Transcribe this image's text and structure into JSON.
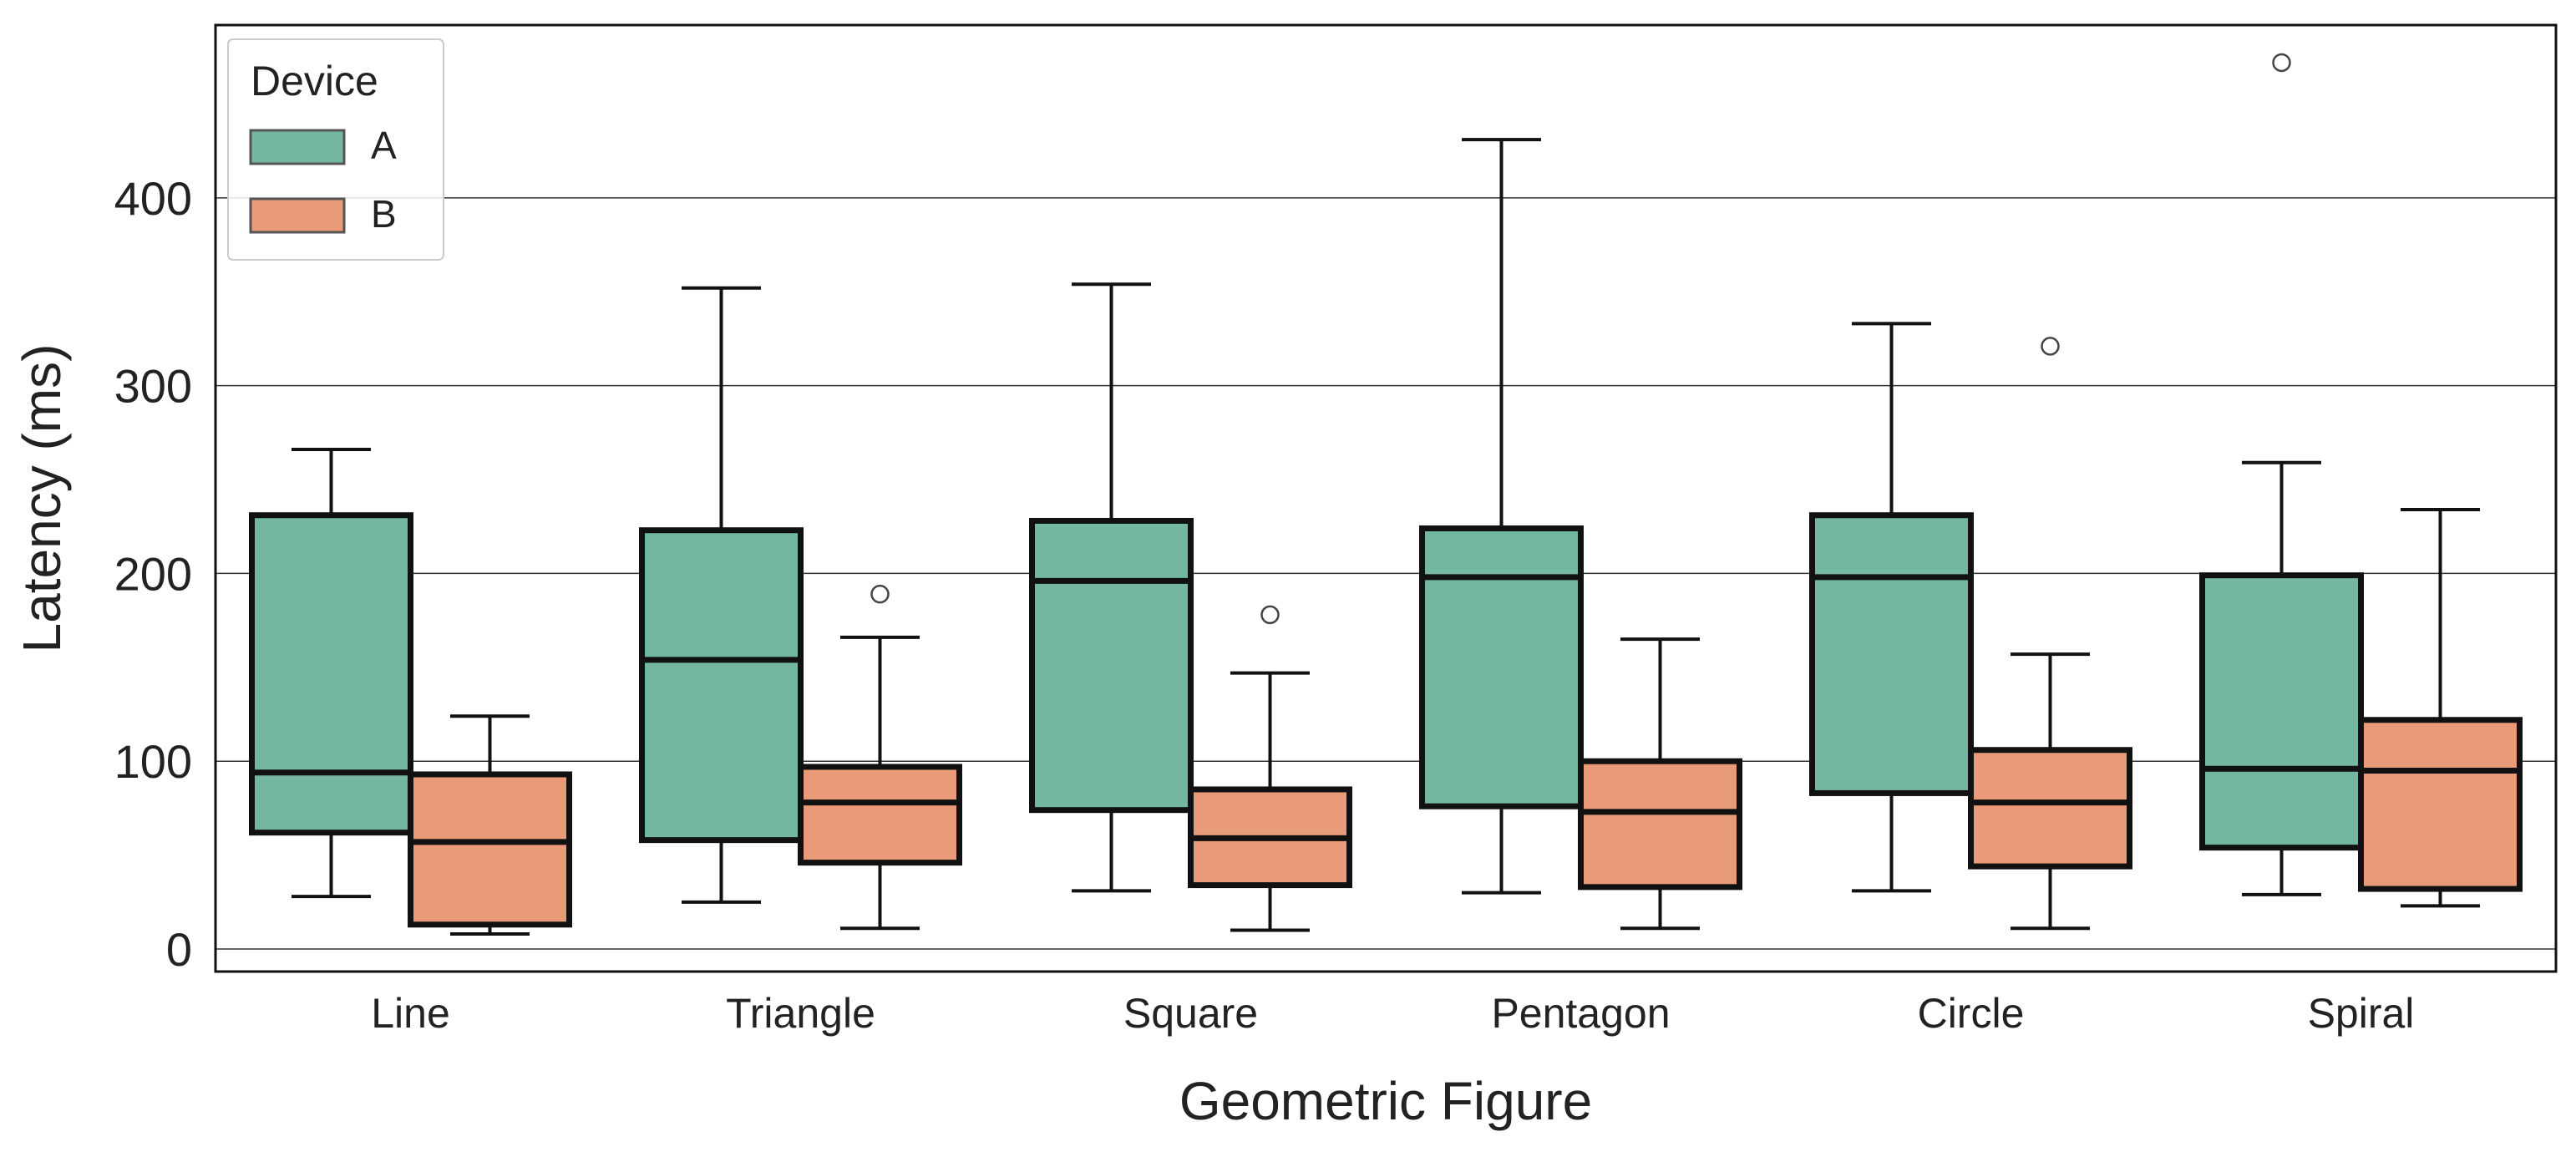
{
  "chart_data": {
    "type": "boxplot",
    "title": "",
    "xlabel": "Geometric Figure",
    "ylabel": "Latency (ms)",
    "ylim": [
      -12,
      492
    ],
    "yticks": [
      0,
      100,
      200,
      300,
      400
    ],
    "grid": "horizontal",
    "legend": {
      "title": "Device",
      "position": "top-left"
    },
    "categories": [
      "Line",
      "Triangle",
      "Square",
      "Pentagon",
      "Circle",
      "Spiral"
    ],
    "series": [
      {
        "name": "A",
        "color": "#73b6a1",
        "boxes": [
          {
            "whislo": 28,
            "q1": 62,
            "med": 94,
            "q3": 231,
            "whishi": 266,
            "fliers": []
          },
          {
            "whislo": 25,
            "q1": 58,
            "med": 154,
            "q3": 223,
            "whishi": 352,
            "fliers": []
          },
          {
            "whislo": 31,
            "q1": 74,
            "med": 196,
            "q3": 228,
            "whishi": 354,
            "fliers": []
          },
          {
            "whislo": 30,
            "q1": 76,
            "med": 198,
            "q3": 224,
            "whishi": 431,
            "fliers": []
          },
          {
            "whislo": 31,
            "q1": 83,
            "med": 198,
            "q3": 231,
            "whishi": 333,
            "fliers": []
          },
          {
            "whislo": 29,
            "q1": 54,
            "med": 96,
            "q3": 199,
            "whishi": 259,
            "fliers": [
              472
            ]
          }
        ]
      },
      {
        "name": "B",
        "color": "#e99a78",
        "boxes": [
          {
            "whislo": 8,
            "q1": 13,
            "med": 57,
            "q3": 93,
            "whishi": 124,
            "fliers": []
          },
          {
            "whislo": 11,
            "q1": 46,
            "med": 78,
            "q3": 97,
            "whishi": 166,
            "fliers": [
              189
            ]
          },
          {
            "whislo": 10,
            "q1": 34,
            "med": 59,
            "q3": 85,
            "whishi": 147,
            "fliers": [
              178
            ]
          },
          {
            "whislo": 11,
            "q1": 33,
            "med": 73,
            "q3": 100,
            "whishi": 165,
            "fliers": []
          },
          {
            "whislo": 11,
            "q1": 44,
            "med": 78,
            "q3": 106,
            "whishi": 157,
            "fliers": [
              321
            ]
          },
          {
            "whislo": 23,
            "q1": 32,
            "med": 95,
            "q3": 122,
            "whishi": 234,
            "fliers": []
          }
        ]
      }
    ]
  }
}
